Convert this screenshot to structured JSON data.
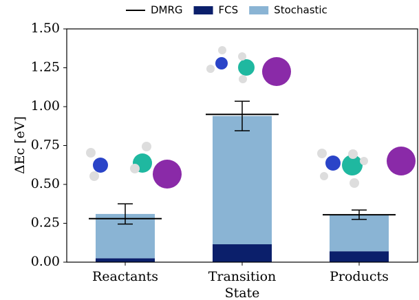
{
  "chart_data": {
    "type": "stacked-bar",
    "ylabel": "ΔEc [eV]",
    "categories": [
      "Reactants",
      "Transition State",
      "Products"
    ],
    "series": [
      {
        "name": "FCS",
        "color": "#0b1f6b",
        "values": [
          0.025,
          0.115,
          0.07
        ]
      },
      {
        "name": "Stochastic",
        "color": "#8ab4d4",
        "values": [
          0.285,
          0.825,
          0.235
        ],
        "errors": [
          0.065,
          0.095,
          0.03
        ]
      }
    ],
    "reference": {
      "name": "DMRG",
      "color": "#000000",
      "values": [
        0.28,
        0.95,
        0.305
      ]
    },
    "ylim": [
      0,
      1.5
    ],
    "yticks": [
      {
        "value": 0,
        "label": "0.00"
      },
      {
        "value": 0.25,
        "label": "0.25"
      },
      {
        "value": 0.5,
        "label": "0.50"
      },
      {
        "value": 0.75,
        "label": "0.75"
      },
      {
        "value": 1,
        "label": "1.00"
      },
      {
        "value": 1.25,
        "label": "1.25"
      },
      {
        "value": 1.5,
        "label": "1.50"
      }
    ],
    "legend": "top"
  }
}
